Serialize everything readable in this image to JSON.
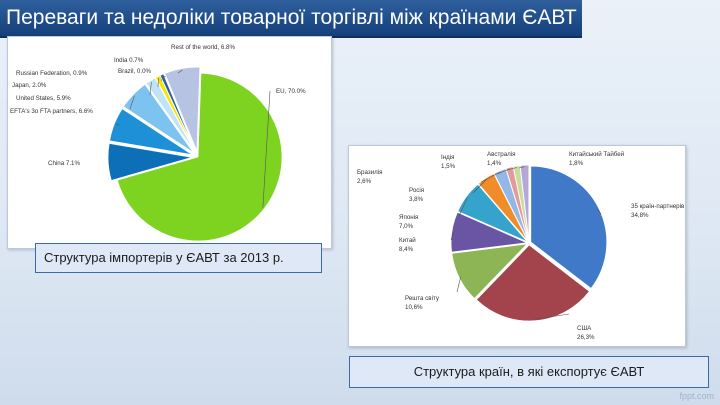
{
  "slide": {
    "title": "Переваги та недоліки товарної торгівлі між країнами ЄАВТ",
    "watermark": "fppt.com"
  },
  "captions": {
    "left": "Структура імпортерів у ЄАВТ за 2013 р.",
    "right": "Структура країн, в які експортує ЄАВТ"
  },
  "chart_data": [
    {
      "type": "pie",
      "title": "",
      "slices": [
        {
          "label": "EU, 70.0%",
          "value": 70.0,
          "color": "#7ed321"
        },
        {
          "label": "China 7.1%",
          "value": 7.1,
          "color": "#0d6fb8"
        },
        {
          "label": "EFTA's 3o FTA partners, 6.6%",
          "value": 6.6,
          "color": "#1e90d8"
        },
        {
          "label": "United States, 5.9%",
          "value": 5.9,
          "color": "#7cc4ef"
        },
        {
          "label": "Japan, 2.0%",
          "value": 2.0,
          "color": "#bfe3f7"
        },
        {
          "label": "Russian Federation, 0.9%",
          "value": 0.9,
          "color": "#f5e600"
        },
        {
          "label": "Brazil, 0.0%",
          "value": 0.0,
          "color": "#d9e8c8"
        },
        {
          "label": "India 0.7%",
          "value": 0.7,
          "color": "#2b5ea8"
        },
        {
          "label": "Rest of the world, 6.8%",
          "value": 6.8,
          "color": "#b7c3e3"
        }
      ]
    },
    {
      "type": "pie",
      "title": "",
      "slices": [
        {
          "label": "35 країн-партнерів ЄАВТ 34,8%",
          "value": 34.8,
          "color": "#3f79c7"
        },
        {
          "label": "США 26,3%",
          "value": 26.3,
          "color": "#a3434b"
        },
        {
          "label": "Решта світу 10,6%",
          "value": 10.6,
          "color": "#8db555"
        },
        {
          "label": "Китай 8,4%",
          "value": 8.4,
          "color": "#6a55a5"
        },
        {
          "label": "Японія 7,0%",
          "value": 7.0,
          "color": "#35a3cc"
        },
        {
          "label": "Росія 3,8%",
          "value": 3.8,
          "color": "#f08c2a"
        },
        {
          "label": "Бразилія 2,6%",
          "value": 2.6,
          "color": "#93b8e8"
        },
        {
          "label": "Індія 1,5%",
          "value": 1.5,
          "color": "#e39a99"
        },
        {
          "label": "Австралія 1,4%",
          "value": 1.4,
          "color": "#c6dca0"
        },
        {
          "label": "Китайський Тайбей 1,8%",
          "value": 1.8,
          "color": "#b5a8d6"
        }
      ]
    }
  ]
}
